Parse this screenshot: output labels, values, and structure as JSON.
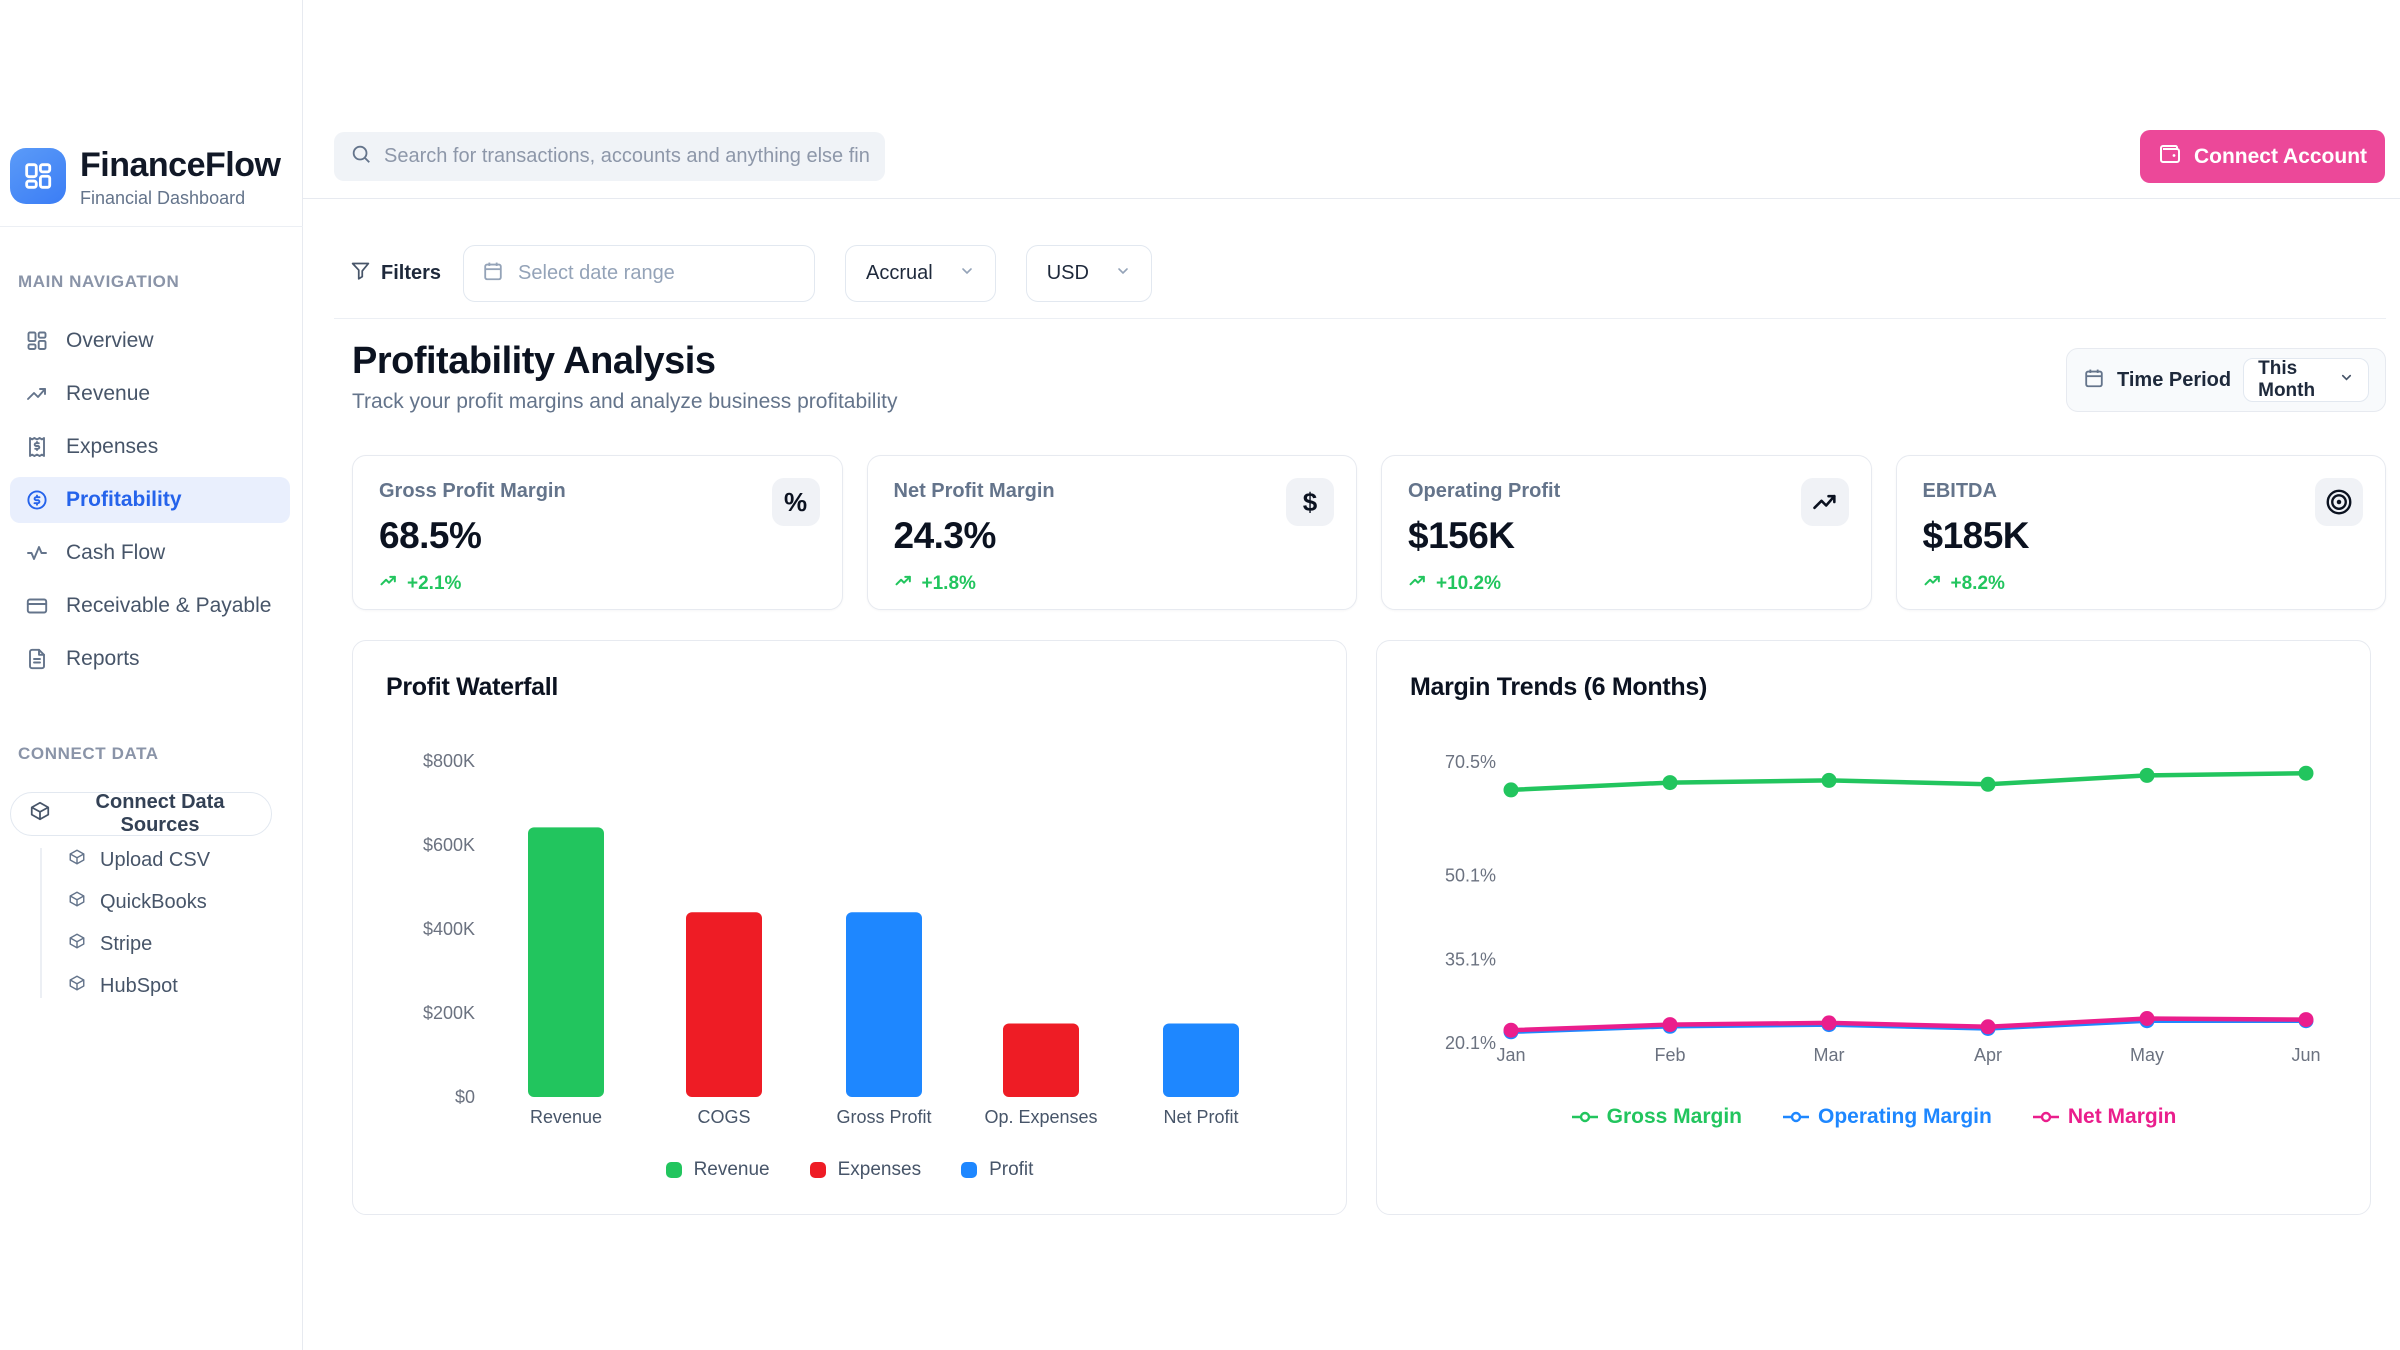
{
  "brand": {
    "name": "FinanceFlow",
    "subtitle": "Financial Dashboard"
  },
  "sidebar": {
    "nav_label": "MAIN NAVIGATION",
    "items": [
      {
        "label": "Overview",
        "icon": "dashboard",
        "active": false
      },
      {
        "label": "Revenue",
        "icon": "trending-up",
        "active": false
      },
      {
        "label": "Expenses",
        "icon": "receipt",
        "active": false
      },
      {
        "label": "Profitability",
        "icon": "dollar-circle",
        "active": true
      },
      {
        "label": "Cash Flow",
        "icon": "activity",
        "active": false
      },
      {
        "label": "Receivable & Payable",
        "icon": "credit-card",
        "active": false
      },
      {
        "label": "Reports",
        "icon": "file-text",
        "active": false
      }
    ],
    "connect_label": "CONNECT DATA",
    "connect_button": "Connect Data Sources",
    "sources": [
      "Upload CSV",
      "QuickBooks",
      "Stripe",
      "HubSpot"
    ]
  },
  "header": {
    "search_placeholder": "Search for transactions, accounts and anything else financial",
    "connect_account": "Connect Account"
  },
  "filters": {
    "label": "Filters",
    "date_placeholder": "Select date range",
    "accounting_basis": "Accrual",
    "currency": "USD"
  },
  "page": {
    "title": "Profitability Analysis",
    "subtitle": "Track your profit margins and analyze business profitability",
    "time_period_label": "Time Period",
    "time_period_value": "This Month"
  },
  "kpis": [
    {
      "label": "Gross Profit Margin",
      "value": "68.5%",
      "change": "+2.1%",
      "icon": "percent"
    },
    {
      "label": "Net Profit Margin",
      "value": "24.3%",
      "change": "+1.8%",
      "icon": "dollar"
    },
    {
      "label": "Operating Profit",
      "value": "$156K",
      "change": "+10.2%",
      "icon": "trending-up"
    },
    {
      "label": "EBITDA",
      "value": "$185K",
      "change": "+8.2%",
      "icon": "target"
    }
  ],
  "colors": {
    "accent_blue": "#2563eb",
    "pink": "#ec4899",
    "green": "#22c55e",
    "red": "#ee1c25",
    "blue": "#1e87ff",
    "magenta": "#ea1e8c",
    "positive": "#22c55e"
  },
  "chart_data": [
    {
      "type": "bar",
      "title": "Profit Waterfall",
      "categories": [
        "Revenue",
        "COGS",
        "Gross Profit",
        "Op. Expenses",
        "Net Profit"
      ],
      "values": [
        642,
        440,
        440,
        175,
        175
      ],
      "value_unit": "$K",
      "bar_colors": [
        "#22c55e",
        "#ee1c25",
        "#1e87ff",
        "#ee1c25",
        "#1e87ff"
      ],
      "ylim": [
        0,
        800
      ],
      "y_ticks": [
        {
          "label": "$0",
          "value": 0
        },
        {
          "label": "$200K",
          "value": 200
        },
        {
          "label": "$400K",
          "value": 400
        },
        {
          "label": "$600K",
          "value": 600
        },
        {
          "label": "$800K",
          "value": 800
        }
      ],
      "grid": false,
      "legend_position": "bottom",
      "legend": [
        {
          "label": "Revenue",
          "color": "#22c55e"
        },
        {
          "label": "Expenses",
          "color": "#ee1c25"
        },
        {
          "label": "Profit",
          "color": "#1e87ff"
        }
      ]
    },
    {
      "type": "line",
      "title": "Margin Trends (6 Months)",
      "x": [
        "Jan",
        "Feb",
        "Mar",
        "Apr",
        "May",
        "Jun"
      ],
      "series": [
        {
          "name": "Gross Margin",
          "color": "#22c55e",
          "values": [
            65.5,
            66.8,
            67.2,
            66.5,
            68.1,
            68.5
          ]
        },
        {
          "name": "Operating Margin",
          "color": "#1e87ff",
          "values": [
            22.1,
            23.1,
            23.4,
            22.7,
            24.1,
            24.1
          ]
        },
        {
          "name": "Net Margin",
          "color": "#ea1e8c",
          "values": [
            22.4,
            23.4,
            23.7,
            23.0,
            24.5,
            24.3
          ]
        }
      ],
      "y_ticks": [
        {
          "label": "70.5%",
          "value": 70.5
        },
        {
          "label": "50.1%",
          "value": 50.1
        },
        {
          "label": "35.1%",
          "value": 35.1
        },
        {
          "label": "20.1%",
          "value": 20.1
        }
      ],
      "ylim": [
        20.1,
        70.5
      ],
      "grid": false,
      "legend_position": "bottom"
    }
  ]
}
